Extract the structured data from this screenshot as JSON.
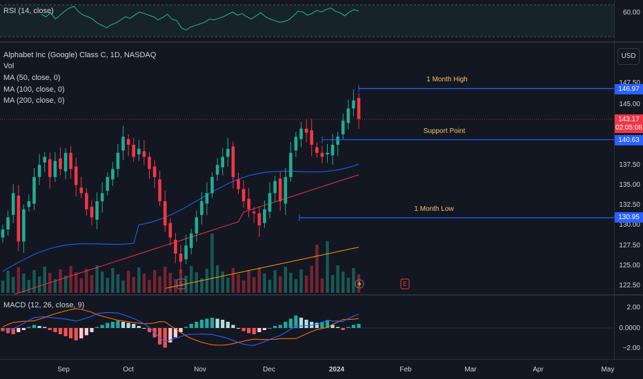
{
  "rsi": {
    "legend": "RSI (14, close)",
    "axis_label": "60.00",
    "values": [
      58,
      55,
      60,
      52,
      57,
      62,
      66,
      68,
      61,
      57,
      55,
      52,
      47,
      44,
      41,
      45,
      47,
      51,
      55,
      53,
      57,
      61,
      59,
      57,
      55,
      51,
      54,
      58,
      52,
      50,
      41,
      38,
      42,
      44,
      46,
      48,
      52,
      51,
      53,
      55,
      58,
      61,
      57,
      59,
      55,
      52,
      56,
      60,
      55,
      52,
      50,
      48,
      49,
      51,
      56,
      62,
      61,
      57,
      59,
      63,
      61,
      64,
      66,
      62,
      60,
      56,
      61,
      64,
      62
    ]
  },
  "main": {
    "title": "Alphabet Inc (Google) Class C, 1D, NASDAQ",
    "indicators": [
      "Vol",
      "MA (50, close, 0)",
      "MA (100, close, 0)",
      "MA (200, close, 0)"
    ],
    "currency_button": "USD",
    "price_axis": [
      "147.50",
      "145.00",
      "137.50",
      "135.00",
      "132.50",
      "130.00",
      "127.50",
      "125.00",
      "122.50"
    ],
    "lines": [
      {
        "label": "1 Month High",
        "price": 146.97,
        "price_label": "146.97"
      },
      {
        "label": "Support Point",
        "price": 140.63,
        "price_label": "140.63"
      },
      {
        "label": "1 Month Low",
        "price": 130.95,
        "price_label": "130.95"
      }
    ],
    "last_price": {
      "price": 143.17,
      "label": "143.17",
      "countdown": "02:05:08",
      "color": "#f23645"
    },
    "earnings_marker": "E",
    "colors": {
      "up": "#22ab94",
      "down": "#f23645",
      "ma50": "#2962ff",
      "ma100": "#f23645",
      "ma200": "#ff9800",
      "hline": "#2962ff",
      "label": "#f5c26b"
    }
  },
  "macd": {
    "legend": "MACD (12, 26, close, 9)",
    "axis": [
      "2.00",
      "0.0000",
      "−2.00"
    ],
    "histogram": [
      -0.3,
      -0.5,
      -0.6,
      -0.4,
      -0.2,
      0.1,
      0.3,
      0.2,
      0.1,
      -0.2,
      -0.4,
      -0.6,
      -0.8,
      -1.0,
      -1.2,
      -1.0,
      -0.7,
      -0.4,
      0.1,
      0.3,
      0.5,
      0.6,
      0.7,
      0.6,
      0.5,
      0.4,
      0.2,
      0.0,
      -0.4,
      -0.9,
      -1.6,
      -1.9,
      -1.4,
      -0.9,
      -0.4,
      0.1,
      0.4,
      0.6,
      0.8,
      0.9,
      1.0,
      0.9,
      0.8,
      0.6,
      0.3,
      0.0,
      -0.3,
      -0.5,
      -0.6,
      -0.4,
      -0.2,
      0.0,
      0.2,
      0.3,
      0.6,
      0.9,
      1.2,
      1.0,
      0.8,
      0.6,
      0.5,
      0.6,
      0.7,
      0.3,
      0.1,
      -0.2,
      0.1,
      0.3,
      0.4
    ]
  },
  "time_axis": [
    "Sep",
    "Oct",
    "Nov",
    "Dec",
    "2024",
    "Feb",
    "Mar",
    "Apr",
    "May"
  ]
}
